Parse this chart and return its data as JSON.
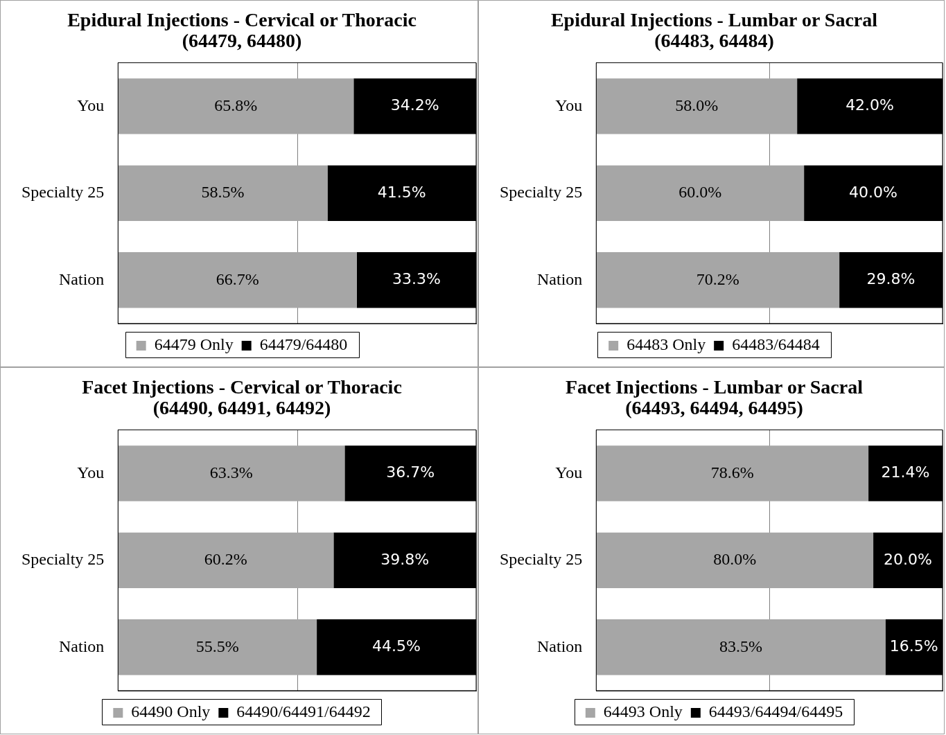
{
  "chart_data": [
    {
      "type": "bar",
      "orientation": "horizontal",
      "stacked": true,
      "title": "Epidural Injections - Cervical or Thoracic (64479, 64480)",
      "categories": [
        "You",
        "Specialty 25",
        "Nation"
      ],
      "xlim": [
        0,
        100
      ],
      "xticks": [
        {
          "value": 0,
          "label": null
        },
        {
          "value": 50,
          "label": null
        },
        {
          "value": 100,
          "label": null
        }
      ],
      "tick_labels": "y",
      "grid": "x",
      "legend": "bottom",
      "series": [
        {
          "name": "64479 Only",
          "color": "#a6a6a6",
          "values": [
            65.8,
            58.5,
            66.7
          ],
          "value_labels": [
            "65.8%",
            "58.5%",
            "66.7%"
          ]
        },
        {
          "name": "64479/64480",
          "color": "#000000",
          "values": [
            34.2,
            41.5,
            33.3
          ],
          "value_labels": [
            "34.2%",
            "41.5%",
            "33.3%"
          ]
        }
      ]
    },
    {
      "type": "bar",
      "orientation": "horizontal",
      "stacked": true,
      "title": "Epidural Injections - Lumbar or Sacral (64483, 64484)",
      "categories": [
        "You",
        "Specialty 25",
        "Nation"
      ],
      "xlim": [
        0,
        100
      ],
      "xticks": [
        {
          "value": 0,
          "label": null
        },
        {
          "value": 50,
          "label": null
        },
        {
          "value": 100,
          "label": null
        }
      ],
      "tick_labels": "y",
      "grid": "x",
      "legend": "bottom",
      "series": [
        {
          "name": "64483 Only",
          "color": "#a6a6a6",
          "values": [
            58.0,
            60.0,
            70.2
          ],
          "value_labels": [
            "58.0%",
            "60.0%",
            "70.2%"
          ]
        },
        {
          "name": "64483/64484",
          "color": "#000000",
          "values": [
            42.0,
            40.0,
            29.8
          ],
          "value_labels": [
            "42.0%",
            "40.0%",
            "29.8%"
          ]
        }
      ]
    },
    {
      "type": "bar",
      "orientation": "horizontal",
      "stacked": true,
      "title": "Facet Injections - Cervical or Thoracic (64490, 64491, 64492)",
      "categories": [
        "You",
        "Specialty 25",
        "Nation"
      ],
      "xlim": [
        0,
        100
      ],
      "xticks": [
        {
          "value": 0,
          "label": null
        },
        {
          "value": 50,
          "label": null
        },
        {
          "value": 100,
          "label": null
        }
      ],
      "tick_labels": "y",
      "grid": "x",
      "legend": "bottom",
      "series": [
        {
          "name": "64490 Only",
          "color": "#a6a6a6",
          "values": [
            63.3,
            60.2,
            55.5
          ],
          "value_labels": [
            "63.3%",
            "60.2%",
            "55.5%"
          ]
        },
        {
          "name": "64490/64491/64492",
          "color": "#000000",
          "values": [
            36.7,
            39.8,
            44.5
          ],
          "value_labels": [
            "36.7%",
            "39.8%",
            "44.5%"
          ]
        }
      ]
    },
    {
      "type": "bar",
      "orientation": "horizontal",
      "stacked": true,
      "title": "Facet Injections - Lumbar or Sacral (64493, 64494, 64495)",
      "categories": [
        "You",
        "Specialty 25",
        "Nation"
      ],
      "xlim": [
        0,
        100
      ],
      "xticks": [
        {
          "value": 0,
          "label": null
        },
        {
          "value": 50,
          "label": null
        },
        {
          "value": 100,
          "label": null
        }
      ],
      "tick_labels": "y",
      "grid": "x",
      "legend": "bottom",
      "series": [
        {
          "name": "64493 Only",
          "color": "#a6a6a6",
          "values": [
            78.6,
            80.0,
            83.5
          ],
          "value_labels": [
            "78.6%",
            "80.0%",
            "83.5%"
          ]
        },
        {
          "name": "64493/64494/64495",
          "color": "#000000",
          "values": [
            21.4,
            20.0,
            16.5
          ],
          "value_labels": [
            "21.4%",
            "20.0%",
            "16.5%"
          ]
        }
      ]
    }
  ]
}
